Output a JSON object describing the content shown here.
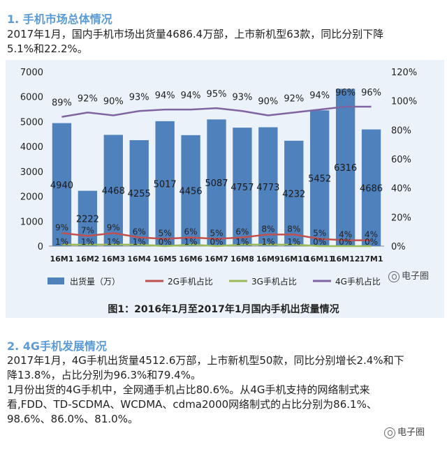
{
  "section1": {
    "title": "1. 手机市场总体情况",
    "para_line1": "2017年1月，国内手机市场出货量4686.4万部，上市新机型63款，同比分别下降",
    "para_line2": "5.1%和22.2%。"
  },
  "chart_caption": "图1：2016年1月至2017年1月国内手机出货量情况",
  "chart_data": {
    "type": "bar",
    "categories": [
      "16M1",
      "16M2",
      "16M3",
      "16M4",
      "16M5",
      "16M6",
      "16M7",
      "16M8",
      "16M9",
      "16M10",
      "16M11",
      "16M12",
      "17M1"
    ],
    "series": [
      {
        "name": "出货量（万）",
        "type": "bar",
        "axis": "left",
        "color": "#4f81bd",
        "values": [
          4940,
          2222,
          4468,
          4255,
          5017,
          4456,
          5087,
          4757,
          4773,
          4232,
          5452,
          6316,
          4686
        ],
        "labels": [
          "4940",
          "2222",
          "4468",
          "4255",
          "5017",
          "4456",
          "5087",
          "4757",
          "4773",
          "4232",
          "5452",
          "6316",
          "4686"
        ]
      },
      {
        "name": "2G手机占比",
        "type": "line",
        "axis": "right",
        "color": "#c0504d",
        "values": [
          9,
          7,
          9,
          6,
          5,
          6,
          5,
          6,
          8,
          8,
          5,
          4,
          4
        ],
        "labels": [
          "9%",
          "7%",
          "9%",
          "6%",
          "5%",
          "6%",
          "5%",
          "6%",
          "8%",
          "8%",
          "5%",
          "4%",
          "4%"
        ]
      },
      {
        "name": "3G手机占比",
        "type": "line",
        "axis": "right",
        "color": "#9bbb59",
        "values": [
          1,
          1,
          1,
          1,
          0,
          1,
          0,
          1,
          1,
          1,
          0,
          0,
          0
        ],
        "labels": [
          "1%",
          "1%",
          "1%",
          "1%",
          "0%",
          "1%",
          "0%",
          "1%",
          "1%",
          "1%",
          "0%",
          "0%",
          "0%"
        ]
      },
      {
        "name": "4G手机占比",
        "type": "line",
        "axis": "right",
        "color": "#8064a2",
        "values": [
          89,
          92,
          90,
          93,
          94,
          94,
          95,
          93,
          90,
          92,
          94,
          96,
          96
        ],
        "labels": [
          "89%",
          "92%",
          "90%",
          "93%",
          "94%",
          "94%",
          "95%",
          "93%",
          "90%",
          "92%",
          "94%",
          "96%",
          "96%"
        ]
      }
    ],
    "left_axis": {
      "min": 0,
      "max": 7000,
      "ticks": [
        "0",
        "1000",
        "2000",
        "3000",
        "4000",
        "5000",
        "6000",
        "7000"
      ]
    },
    "right_axis": {
      "min": 0,
      "max": 120,
      "ticks": [
        "0%",
        "20%",
        "40%",
        "60%",
        "80%",
        "100%",
        "120%"
      ]
    },
    "legend_position": "bottom"
  },
  "watermark_text": "电子圈",
  "section2": {
    "title": "2. 4G手机发展情况",
    "lines": [
      "2017年1月，4G手机出货量4512.6万部，上市新机型50款，同比分别增长2.4%和下",
      "降13.8%，占比分别为96.3%和79.4%。",
      "1月份出货的4G手机中，全网通手机占比80.6%。从4G手机支持的网络制式来",
      "看,FDD、TD-SCDMA、WCDMA、cdma2000网络制式的占比分别为86.1%、",
      "98.6%、86.0%、81.0%。"
    ]
  }
}
